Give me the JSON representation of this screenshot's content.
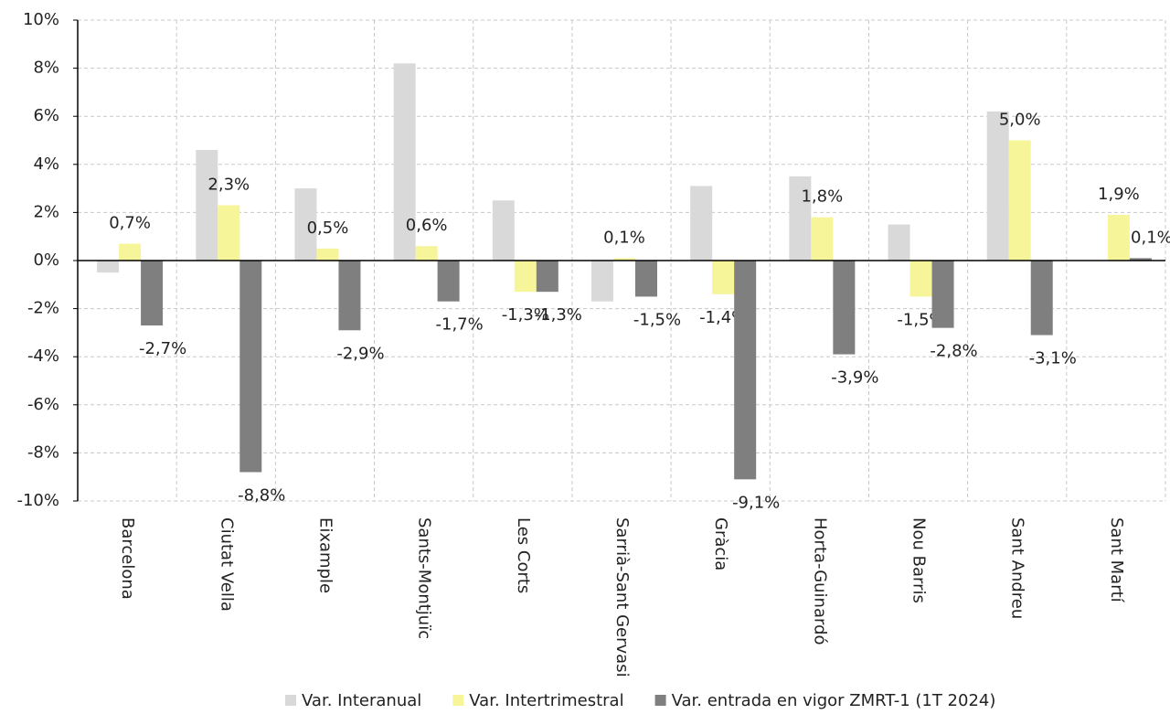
{
  "chart_data": {
    "type": "bar",
    "categories": [
      "Barcelona",
      "Ciutat Vella",
      "Eixample",
      "Sants-Montjuïc",
      "Les Corts",
      "Sarrià-Sant Gervasi",
      "Gràcia",
      "Horta-Guinardó",
      "Nou Barris",
      "Sant Andreu",
      "Sant Martí"
    ],
    "series": [
      {
        "name": "Var. Interanual",
        "color": "#d9d9d9",
        "values": [
          -0.5,
          4.6,
          3.0,
          8.2,
          2.5,
          -1.7,
          3.1,
          3.5,
          1.5,
          6.2,
          null
        ]
      },
      {
        "name": "Var. Intertrimestral",
        "color": "#f7f59a",
        "values": [
          0.7,
          2.3,
          0.5,
          0.6,
          -1.3,
          0.1,
          -1.4,
          1.8,
          -1.5,
          5.0,
          1.9
        ],
        "value_labels": [
          "0,7%",
          "2,3%",
          "0,5%",
          "0,6%",
          "-1,3%",
          "0,1%",
          "-1,4%",
          "1,8%",
          "-1,5%",
          "5,0%",
          "1,9%"
        ]
      },
      {
        "name": "Var. entrada en vigor ZMRT-1 (1T 2024)",
        "color": "#7f7f7f",
        "values": [
          -2.7,
          -8.8,
          -2.9,
          -1.7,
          -1.3,
          -1.5,
          -9.1,
          -3.9,
          -2.8,
          -3.1,
          0.1
        ],
        "value_labels": [
          "-2,7%",
          "-8,8%",
          "-2,9%",
          "-1,7%",
          "-1,3%",
          "-1,5%",
          "-9,1%",
          "-3,9%",
          "-2,8%",
          "-3,1%",
          "0,1%"
        ]
      }
    ],
    "ylim": [
      -10,
      10
    ],
    "yticks": [
      {
        "value": -10,
        "label": "-10%"
      },
      {
        "value": -8,
        "label": "-8%"
      },
      {
        "value": -6,
        "label": "-6%"
      },
      {
        "value": -4,
        "label": "-4%"
      },
      {
        "value": -2,
        "label": "-2%"
      },
      {
        "value": 0,
        "label": "0%"
      },
      {
        "value": 2,
        "label": "2%"
      },
      {
        "value": 4,
        "label": "4%"
      },
      {
        "value": 6,
        "label": "6%"
      },
      {
        "value": 8,
        "label": "8%"
      },
      {
        "value": 10,
        "label": "10%"
      }
    ],
    "grid": true,
    "legend": "bottom"
  }
}
